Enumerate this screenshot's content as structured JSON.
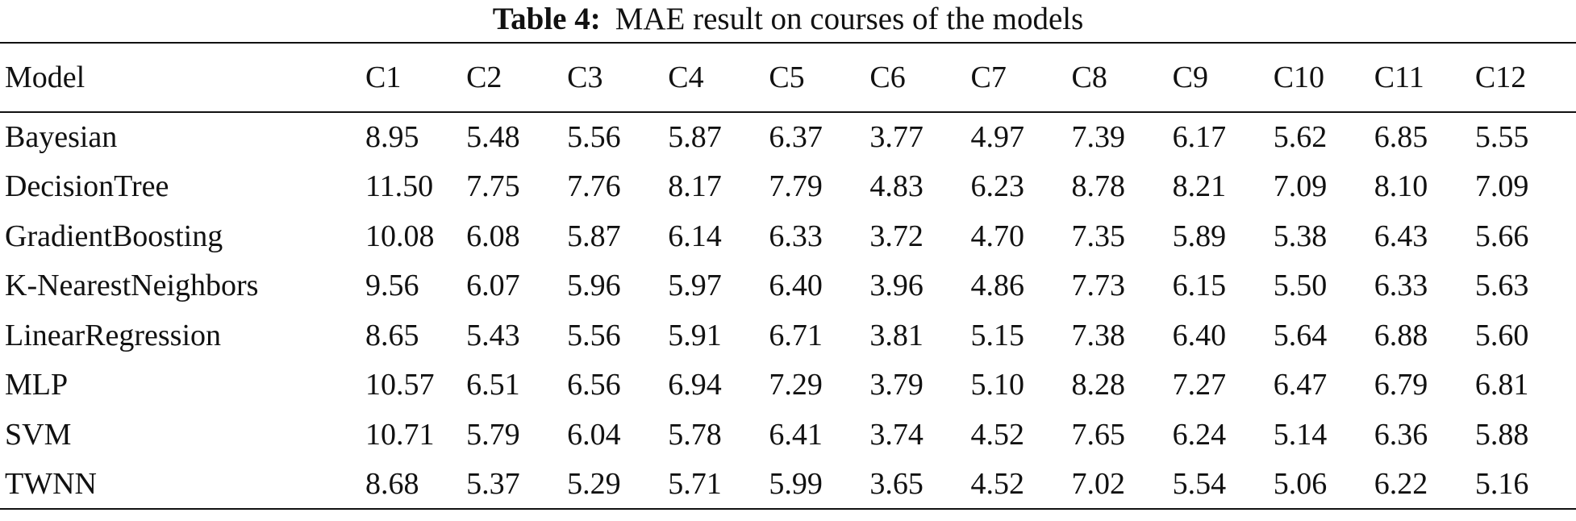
{
  "caption": {
    "label": "Table 4:",
    "text": "MAE result on courses of the models"
  },
  "table": {
    "columns": [
      "Model",
      "C1",
      "C2",
      "C3",
      "C4",
      "C5",
      "C6",
      "C7",
      "C8",
      "C9",
      "C10",
      "C11",
      "C12"
    ],
    "rows": [
      [
        "Bayesian",
        "8.95",
        "5.48",
        "5.56",
        "5.87",
        "6.37",
        "3.77",
        "4.97",
        "7.39",
        "6.17",
        "5.62",
        "6.85",
        "5.55"
      ],
      [
        "DecisionTree",
        "11.50",
        "7.75",
        "7.76",
        "8.17",
        "7.79",
        "4.83",
        "6.23",
        "8.78",
        "8.21",
        "7.09",
        "8.10",
        "7.09"
      ],
      [
        "GradientBoosting",
        "10.08",
        "6.08",
        "5.87",
        "6.14",
        "6.33",
        "3.72",
        "4.70",
        "7.35",
        "5.89",
        "5.38",
        "6.43",
        "5.66"
      ],
      [
        "K-NearestNeighbors",
        "9.56",
        "6.07",
        "5.96",
        "5.97",
        "6.40",
        "3.96",
        "4.86",
        "7.73",
        "6.15",
        "5.50",
        "6.33",
        "5.63"
      ],
      [
        "LinearRegression",
        "8.65",
        "5.43",
        "5.56",
        "5.91",
        "6.71",
        "3.81",
        "5.15",
        "7.38",
        "6.40",
        "5.64",
        "6.88",
        "5.60"
      ],
      [
        "MLP",
        "10.57",
        "6.51",
        "6.56",
        "6.94",
        "7.29",
        "3.79",
        "5.10",
        "8.28",
        "7.27",
        "6.47",
        "6.79",
        "6.81"
      ],
      [
        "SVM",
        "10.71",
        "5.79",
        "6.04",
        "5.78",
        "6.41",
        "3.74",
        "4.52",
        "7.65",
        "6.24",
        "5.14",
        "6.36",
        "5.88"
      ],
      [
        "TWNN",
        "8.68",
        "5.37",
        "5.29",
        "5.71",
        "5.99",
        "3.65",
        "4.52",
        "7.02",
        "5.54",
        "5.06",
        "6.22",
        "5.16"
      ]
    ]
  }
}
